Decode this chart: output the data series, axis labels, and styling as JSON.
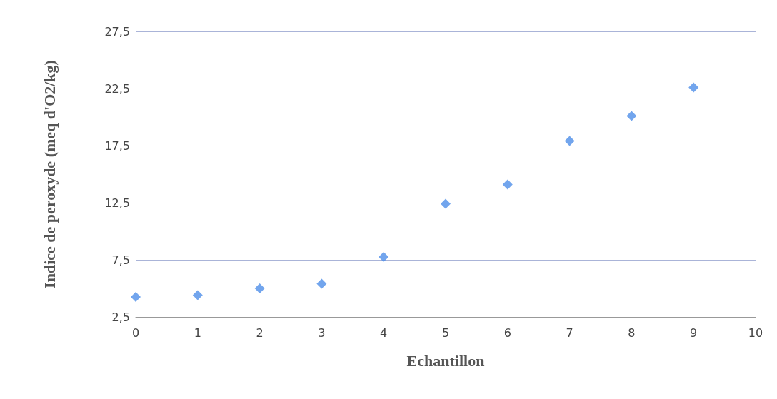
{
  "chart_data": {
    "type": "scatter",
    "xlabel": "Echantillon",
    "ylabel": "Indice de peroxyde (meq d'O2/kg)",
    "x": [
      0,
      1,
      2,
      3,
      4,
      5,
      6,
      7,
      8,
      9
    ],
    "values": [
      4.25,
      4.4,
      5.0,
      5.4,
      7.75,
      12.4,
      14.1,
      17.9,
      20.1,
      22.6
    ],
    "color": "#4f8fe8",
    "marker": "diamond",
    "grid": "y",
    "xlim": [
      0,
      10
    ],
    "xticks": [
      0,
      1,
      2,
      3,
      4,
      5,
      6,
      7,
      8,
      9,
      10
    ],
    "ylim": [
      2.5,
      27.5
    ],
    "yticks": [
      {
        "value": 2.5,
        "label": "2,5"
      },
      {
        "value": 7.5,
        "label": "7,5"
      },
      {
        "value": 12.5,
        "label": "12,5"
      },
      {
        "value": 17.5,
        "label": "17,5"
      },
      {
        "value": 22.5,
        "label": "22,5"
      },
      {
        "value": 27.5,
        "label": "27,5"
      }
    ]
  }
}
